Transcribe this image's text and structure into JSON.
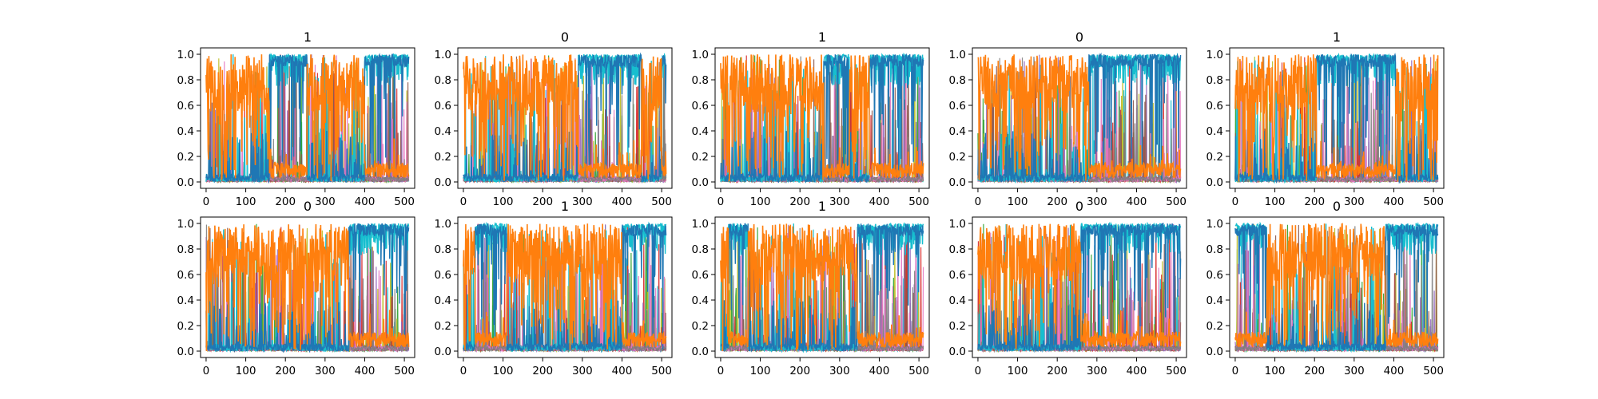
{
  "chart_data": {
    "type": "line",
    "xlim": [
      -14,
      526
    ],
    "ylim": [
      -0.05,
      1.05
    ],
    "x_ticks": [
      0,
      100,
      200,
      300,
      400,
      500
    ],
    "y_ticks": [
      0.0,
      0.2,
      0.4,
      0.6,
      0.8,
      1.0
    ],
    "x_tick_labels": [
      "0",
      "100",
      "200",
      "300",
      "400",
      "500"
    ],
    "y_tick_labels": [
      "0.0",
      "0.2",
      "0.4",
      "0.6",
      "0.8",
      "1.0"
    ],
    "grid": false,
    "legend": "none",
    "colors": {
      "background_series": "#1f77b4",
      "highlight_series": "#ff7f0e",
      "noise_series": [
        "#17becf",
        "#2ca02c",
        "#bcbd22",
        "#d62728",
        "#9467bd",
        "#8c564b",
        "#e377c2",
        "#7f7f7f"
      ],
      "axes": "#000000"
    },
    "panels": [
      {
        "title": "1",
        "orange_high_segments": [
          [
            0,
            160
          ],
          [
            255,
            400
          ]
        ],
        "orange_baseline": 0.1
      },
      {
        "title": "0",
        "orange_high_segments": [
          [
            0,
            290
          ],
          [
            450,
            500
          ]
        ],
        "orange_baseline": 0.1
      },
      {
        "title": "1",
        "orange_high_segments": [
          [
            0,
            260
          ],
          [
            325,
            375
          ]
        ],
        "orange_baseline": 0.1
      },
      {
        "title": "0",
        "orange_high_segments": [
          [
            0,
            280
          ]
        ],
        "orange_baseline": 0.1
      },
      {
        "title": "1",
        "orange_high_segments": [
          [
            0,
            205
          ],
          [
            405,
            512
          ]
        ],
        "orange_baseline": 0.1
      },
      {
        "title": "0",
        "orange_high_segments": [
          [
            0,
            360
          ]
        ],
        "orange_baseline": 0.1
      },
      {
        "title": "1",
        "orange_high_segments": [
          [
            0,
            30
          ],
          [
            110,
            400
          ]
        ],
        "orange_baseline": 0.1
      },
      {
        "title": "1",
        "orange_high_segments": [
          [
            0,
            20
          ],
          [
            70,
            345
          ]
        ],
        "orange_baseline": 0.1
      },
      {
        "title": "0",
        "orange_high_segments": [
          [
            0,
            260
          ]
        ],
        "orange_baseline": 0.1
      },
      {
        "title": "0",
        "orange_high_segments": [
          [
            80,
            380
          ]
        ],
        "orange_baseline": 0.1
      }
    ]
  }
}
